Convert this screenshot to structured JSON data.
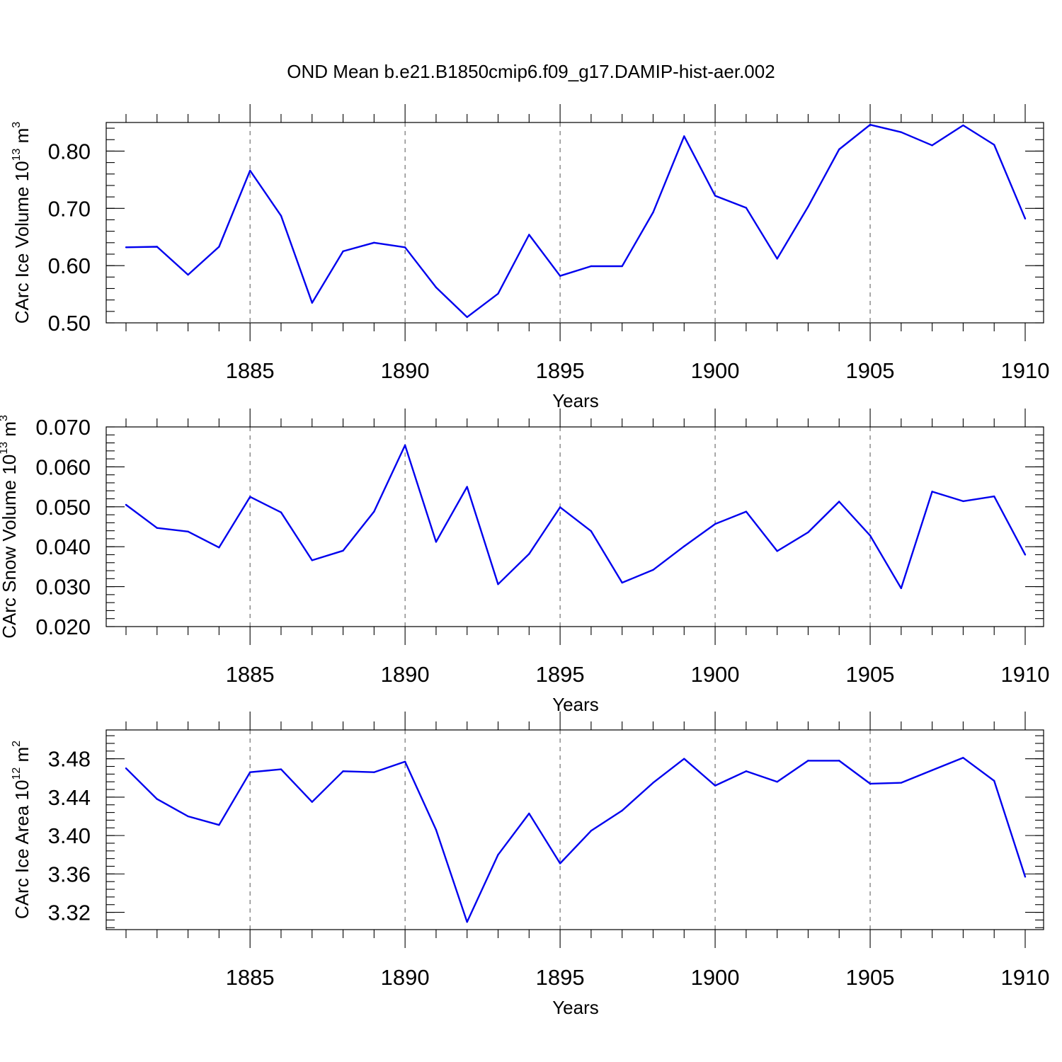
{
  "title": "OND Mean b.e21.B1850cmip6.f09_g17.DAMIP-hist-aer.002",
  "chart_data": [
    {
      "type": "line",
      "ylabel_main": "CArc Ice Volume 10",
      "ylabel_exp": "13",
      "ylabel_unit": " m",
      "ylabel_unit_exp": "3",
      "xlabel": "Years",
      "xlim": [
        1881,
        1910
      ],
      "ylim": [
        0.5,
        0.85
      ],
      "yticks": [
        0.5,
        0.6,
        0.7,
        0.8
      ],
      "ytick_labels": [
        "0.50",
        "0.60",
        "0.70",
        "0.80"
      ],
      "yminor_step": 0.02,
      "xticks": [
        1885,
        1890,
        1895,
        1900,
        1905,
        1910
      ],
      "xtick_labels": [
        "1885",
        "1890",
        "1895",
        "1900",
        "1905",
        "1910"
      ],
      "grid": "x-dashed",
      "color": "#0000ee",
      "x": [
        1881,
        1882,
        1883,
        1884,
        1885,
        1886,
        1887,
        1888,
        1889,
        1890,
        1891,
        1892,
        1893,
        1894,
        1895,
        1896,
        1897,
        1898,
        1899,
        1900,
        1901,
        1902,
        1903,
        1904,
        1905,
        1906,
        1907,
        1908,
        1909,
        1910
      ],
      "values": [
        0.632,
        0.633,
        0.584,
        0.633,
        0.766,
        0.687,
        0.535,
        0.625,
        0.64,
        0.632,
        0.562,
        0.51,
        0.551,
        0.654,
        0.582,
        0.599,
        0.599,
        0.693,
        0.826,
        0.722,
        0.701,
        0.612,
        0.703,
        0.803,
        0.846,
        0.833,
        0.81,
        0.845,
        0.811,
        0.682
      ]
    },
    {
      "type": "line",
      "ylabel_main": "CArc Snow Volume 10",
      "ylabel_exp": "13",
      "ylabel_unit": " m",
      "ylabel_unit_exp": "3",
      "xlabel": "Years",
      "xlim": [
        1881,
        1910
      ],
      "ylim": [
        0.02,
        0.07
      ],
      "yticks": [
        0.02,
        0.03,
        0.04,
        0.05,
        0.06,
        0.07
      ],
      "ytick_labels": [
        "0.020",
        "0.030",
        "0.040",
        "0.050",
        "0.060",
        "0.070"
      ],
      "yminor_step": 0.002,
      "xticks": [
        1885,
        1890,
        1895,
        1900,
        1905,
        1910
      ],
      "xtick_labels": [
        "1885",
        "1890",
        "1895",
        "1900",
        "1905",
        "1910"
      ],
      "grid": "x-dashed",
      "color": "#0000ee",
      "x": [
        1881,
        1882,
        1883,
        1884,
        1885,
        1886,
        1887,
        1888,
        1889,
        1890,
        1891,
        1892,
        1893,
        1894,
        1895,
        1896,
        1897,
        1898,
        1899,
        1900,
        1901,
        1902,
        1903,
        1904,
        1905,
        1906,
        1907,
        1908,
        1909,
        1910
      ],
      "values": [
        0.0505,
        0.0447,
        0.0438,
        0.0398,
        0.0525,
        0.0486,
        0.0366,
        0.039,
        0.0488,
        0.0654,
        0.0412,
        0.055,
        0.0306,
        0.0382,
        0.0499,
        0.0439,
        0.031,
        0.0342,
        0.0401,
        0.0457,
        0.0488,
        0.0389,
        0.0436,
        0.0513,
        0.0428,
        0.0296,
        0.0538,
        0.0514,
        0.0526,
        0.038
      ]
    },
    {
      "type": "line",
      "ylabel_main": "CArc Ice Area 10",
      "ylabel_exp": "12",
      "ylabel_unit": " m",
      "ylabel_unit_exp": "2",
      "xlabel": "Years",
      "xlim": [
        1881,
        1910
      ],
      "ylim": [
        3.302,
        3.51
      ],
      "yticks": [
        3.32,
        3.36,
        3.4,
        3.44,
        3.48
      ],
      "ytick_labels": [
        "3.32",
        "3.36",
        "3.40",
        "3.44",
        "3.48"
      ],
      "yminor_step": 0.008,
      "xticks": [
        1885,
        1890,
        1895,
        1900,
        1905,
        1910
      ],
      "xtick_labels": [
        "1885",
        "1890",
        "1895",
        "1900",
        "1905",
        "1910"
      ],
      "grid": "x-dashed",
      "color": "#0000ee",
      "x": [
        1881,
        1882,
        1883,
        1884,
        1885,
        1886,
        1887,
        1888,
        1889,
        1890,
        1891,
        1892,
        1893,
        1894,
        1895,
        1896,
        1897,
        1898,
        1899,
        1900,
        1901,
        1902,
        1903,
        1904,
        1905,
        1906,
        1907,
        1908,
        1909,
        1910
      ],
      "values": [
        3.47,
        3.438,
        3.42,
        3.411,
        3.466,
        3.469,
        3.435,
        3.467,
        3.466,
        3.477,
        3.406,
        3.31,
        3.38,
        3.423,
        3.371,
        3.405,
        3.426,
        3.455,
        3.48,
        3.452,
        3.467,
        3.456,
        3.478,
        3.478,
        3.454,
        3.455,
        3.468,
        3.481,
        3.457,
        3.357
      ]
    }
  ]
}
